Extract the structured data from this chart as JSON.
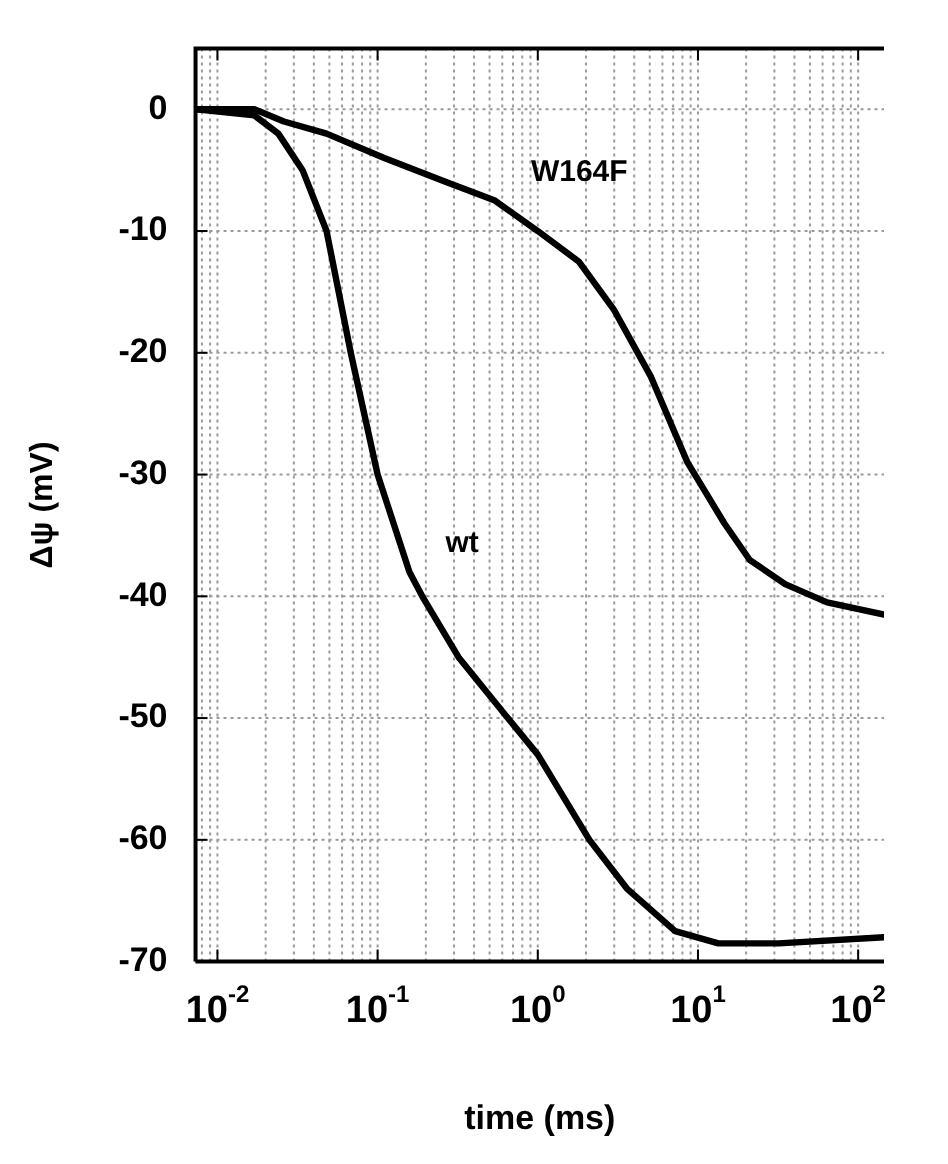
{
  "chart_data": {
    "type": "line",
    "xlabel": "time (ms)",
    "ylabel": "Δψ (mV)",
    "log": "x",
    "grid": true,
    "marker": "none",
    "line_style": "solid",
    "xlim": [
      0.0073,
      145
    ],
    "ylim": [
      -70,
      5
    ],
    "xticks": [
      {
        "value": 0.01,
        "label": "10$^{-2}$"
      },
      {
        "value": 0.1,
        "label": "10$^{-1}$"
      },
      {
        "value": 1,
        "label": "10$^{0}$"
      },
      {
        "value": 10,
        "label": "10$^{1}$"
      },
      {
        "value": 100,
        "label": "10$^{2}$"
      }
    ],
    "yticks": [
      0,
      -10,
      -20,
      -30,
      -40,
      -50,
      -60,
      -70
    ],
    "series": [
      {
        "name": "wt",
        "color": "#000000",
        "x": [
          0.0074,
          0.017,
          0.024,
          0.034,
          0.048,
          0.068,
          0.1,
          0.158,
          0.19,
          0.32,
          0.65,
          1,
          2.1,
          3.6,
          7.2,
          13.4,
          32,
          145
        ],
        "values": [
          0,
          -0.5,
          -2,
          -5,
          -10,
          -20,
          -30,
          -38,
          -40,
          -45,
          -50,
          -53,
          -60,
          -64,
          -67.5,
          -68.5,
          -68.5,
          -68
        ]
      },
      {
        "name": "W164F",
        "color": "#000000",
        "x": [
          0.0074,
          0.017,
          0.026,
          0.048,
          0.11,
          0.27,
          0.54,
          1,
          1.8,
          3,
          5.1,
          8.6,
          14.6,
          21,
          35,
          64,
          145
        ],
        "values": [
          0,
          0,
          -1,
          -2,
          -4,
          -6,
          -7.5,
          -10,
          -12.5,
          -16.5,
          -22,
          -29,
          -34,
          -37,
          -39,
          -40.5,
          -41.5
        ]
      }
    ]
  }
}
